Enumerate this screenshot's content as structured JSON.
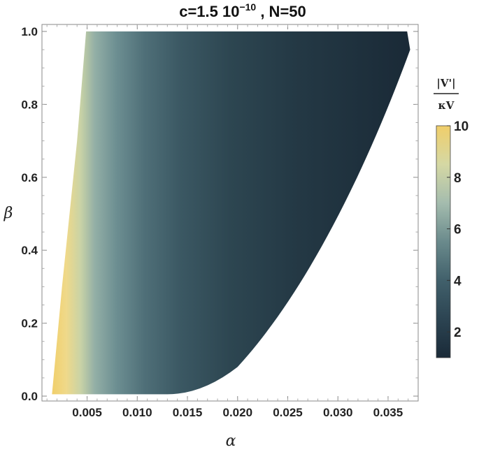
{
  "chart_data": {
    "type": "heatmap",
    "title": {
      "main": "c=1.5 10",
      "sup": "−10",
      "rest": " , N=50"
    },
    "xlabel": "α",
    "ylabel": "β",
    "xlim": [
      0.0005,
      0.038
    ],
    "ylim": [
      -0.01,
      1.0
    ],
    "xticks": [
      0.005,
      0.01,
      0.015,
      0.02,
      0.025,
      0.03,
      0.035
    ],
    "xtick_labels": [
      "0.005",
      "0.010",
      "0.015",
      "0.020",
      "0.025",
      "0.030",
      "0.035"
    ],
    "yticks": [
      0.0,
      0.2,
      0.4,
      0.6,
      0.8,
      1.0
    ],
    "ytick_labels": [
      "0.0",
      "0.2",
      "0.4",
      "0.6",
      "0.8",
      "1.0"
    ],
    "colorbar": {
      "title_top": "|V'|",
      "title_bottom": "κV",
      "range": [
        1,
        10
      ],
      "ticks": [
        2,
        4,
        6,
        8,
        10
      ],
      "tick_labels": [
        "2",
        "4",
        "6",
        "8",
        "10"
      ],
      "colors": [
        "#1a2a38",
        "#2c4452",
        "#41606b",
        "#6a8a8c",
        "#a4bcae",
        "#d5d8a4",
        "#f0ce6a"
      ]
    },
    "region": {
      "left_boundary": [
        [
          0.0015,
          0.005
        ],
        [
          0.0025,
          0.3
        ],
        [
          0.004,
          0.7
        ],
        [
          0.0049,
          1.0
        ]
      ],
      "bottom_boundary": [
        [
          0.0015,
          0.005
        ],
        [
          0.013,
          0.005
        ]
      ],
      "right_boundary": [
        [
          0.013,
          0.005
        ],
        [
          0.02,
          0.08
        ],
        [
          0.026,
          0.26
        ],
        [
          0.032,
          0.56
        ],
        [
          0.0372,
          0.95
        ],
        [
          0.0369,
          1.0
        ]
      ],
      "top_boundary": [
        [
          0.0049,
          1.0
        ],
        [
          0.0369,
          1.0
        ]
      ]
    },
    "grid": false,
    "legend": "colorbar-right"
  }
}
